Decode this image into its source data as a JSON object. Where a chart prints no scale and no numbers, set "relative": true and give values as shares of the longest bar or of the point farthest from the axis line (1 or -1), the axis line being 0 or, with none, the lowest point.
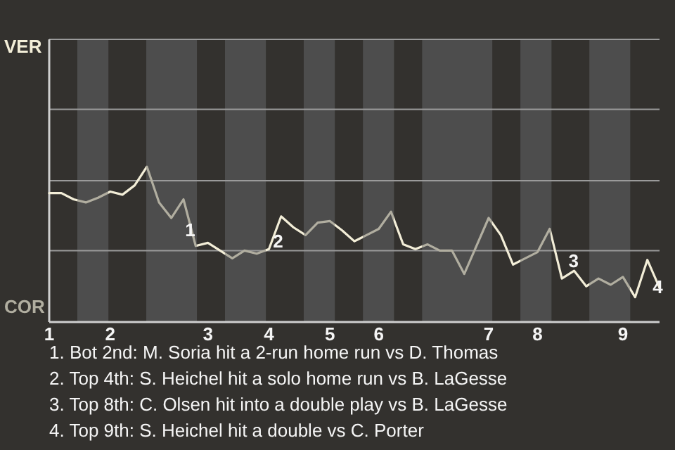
{
  "chart_data": {
    "type": "line",
    "relative": true,
    "categories": [
      "1",
      null,
      null,
      null,
      null,
      "2",
      null,
      null,
      null,
      null,
      null,
      null,
      null,
      "3",
      null,
      null,
      null,
      null,
      "4",
      null,
      null,
      null,
      null,
      "5",
      null,
      null,
      null,
      "6",
      null,
      null,
      null,
      null,
      null,
      null,
      null,
      null,
      "7",
      null,
      null,
      null,
      "8",
      null,
      null,
      null,
      null,
      null,
      null,
      "9",
      null,
      null,
      null
    ],
    "series": [
      {
        "color": "#f3eed8",
        "values": [
          0.83,
          0.83,
          0.79,
          0.77,
          0.8,
          0.84,
          0.82,
          0.88,
          1,
          0.77,
          0.67,
          0.79,
          0.49,
          0.51,
          0.46,
          0.41,
          0.46,
          0.44,
          0.47,
          0.68,
          0.61,
          0.56,
          0.64,
          0.65,
          0.59,
          0.52,
          0.56,
          0.6,
          0.71,
          0.5,
          0.47,
          0.5,
          0.46,
          0.46,
          0.31,
          0.49,
          0.67,
          0.56,
          0.37,
          0.41,
          0.45,
          0.6,
          0.28,
          0.33,
          0.23,
          0.28,
          0.24,
          0.29,
          0.16,
          0.4,
          0.22
        ]
      }
    ],
    "ref_lines": [
      {
        "axis": "y",
        "value": 0.46
      },
      {
        "axis": "y",
        "value": 0.91
      },
      {
        "axis": "y",
        "value": 1.37
      },
      {
        "axis": "y",
        "value": 1.82
      }
    ],
    "annotations": [
      "VER",
      "COR",
      "1",
      "2",
      "3",
      "4",
      "1. Bot 2nd: M. Soria hit a 2-run home run vs D. Thomas",
      "2. Top 4th: S. Heichel hit a solo home run vs B. LaGesse",
      "3. Top 8th: C. Olsen hit into a double play vs B. LaGesse",
      "4. Top 9th: S. Heichel hit a double vs C. Porter"
    ],
    "marker": "none",
    "line_style": "solid"
  }
}
